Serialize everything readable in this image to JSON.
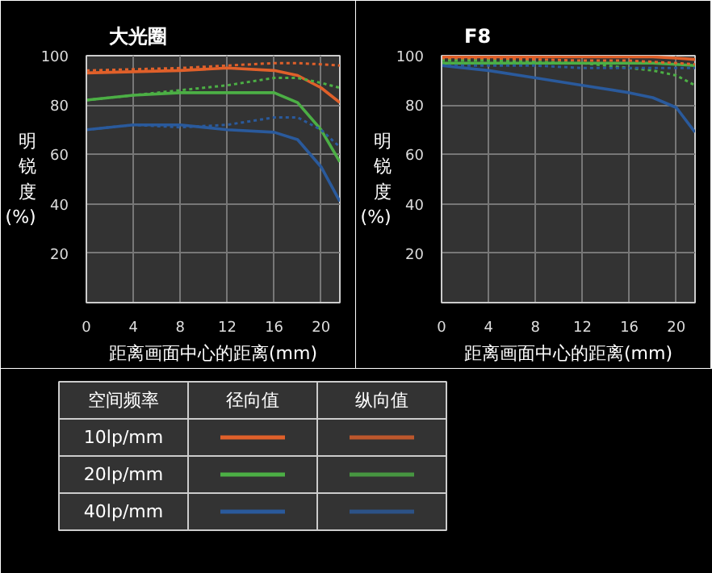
{
  "chart_data": [
    {
      "type": "line",
      "title": "大光圈",
      "xlabel": "距离画面中心的距离(mm)",
      "ylabel": "明锐度(%)",
      "x": [
        0,
        4,
        8,
        12,
        16,
        18,
        20,
        21.6
      ],
      "xlim": [
        0,
        21.6
      ],
      "ylim": [
        0,
        100
      ],
      "xticks": [
        0,
        4,
        8,
        12,
        16,
        20
      ],
      "yticks": [
        20,
        40,
        60,
        80,
        100
      ],
      "grid": true,
      "series": [
        {
          "color": "#e0602a",
          "line_style": "solid",
          "values": [
            93,
            93.5,
            94,
            95,
            94,
            92,
            87,
            81
          ]
        },
        {
          "color": "#e0602a",
          "line_style": "dotted",
          "values": [
            94,
            94.5,
            95,
            96,
            97,
            97,
            96.5,
            96
          ]
        },
        {
          "color": "#4caf45",
          "line_style": "solid",
          "values": [
            82,
            84,
            85,
            85,
            85,
            81,
            70,
            57
          ]
        },
        {
          "color": "#4caf45",
          "line_style": "dotted",
          "values": [
            82,
            84,
            86,
            88,
            91,
            91,
            89,
            87
          ]
        },
        {
          "color": "#2a5a9c",
          "line_style": "solid",
          "values": [
            70,
            72,
            72,
            70,
            69,
            66,
            55,
            41
          ]
        },
        {
          "color": "#2a5a9c",
          "line_style": "dotted",
          "values": [
            70,
            72,
            71,
            72,
            75,
            75,
            70,
            63
          ]
        }
      ],
      "annotations": [
        "空间频率",
        "径向值",
        "纵向值",
        "10lp/mm",
        "20lp/mm",
        "40lp/mm"
      ]
    },
    {
      "type": "line",
      "title": "F8",
      "xlabel": "距离画面中心的距离(mm)",
      "ylabel": "明锐度(%)",
      "x": [
        0,
        4,
        8,
        12,
        16,
        18,
        20,
        21.6
      ],
      "xlim": [
        0,
        21.6
      ],
      "ylim": [
        0,
        100
      ],
      "xticks": [
        0,
        4,
        8,
        12,
        16,
        20
      ],
      "yticks": [
        20,
        40,
        60,
        80,
        100
      ],
      "grid": true,
      "series": [
        {
          "color": "#e0602a",
          "line_style": "solid",
          "values": [
            99.5,
            99.5,
            99.5,
            99.5,
            99.5,
            99.5,
            99,
            98.5
          ]
        },
        {
          "color": "#e0602a",
          "line_style": "dotted",
          "values": [
            98.5,
            98.5,
            98.5,
            98,
            98,
            97.5,
            97,
            96.5
          ]
        },
        {
          "color": "#4caf45",
          "line_style": "solid",
          "values": [
            97,
            97,
            97,
            97,
            97,
            97,
            96.5,
            96
          ]
        },
        {
          "color": "#4caf45",
          "line_style": "dotted",
          "values": [
            98,
            98,
            97.5,
            97,
            95,
            94,
            92,
            88
          ]
        },
        {
          "color": "#2a5a9c",
          "line_style": "solid",
          "values": [
            96,
            94,
            91,
            88,
            85,
            83,
            79,
            69
          ]
        },
        {
          "color": "#2a5a9c",
          "line_style": "dotted",
          "values": [
            96,
            96,
            96,
            95,
            95,
            95,
            95,
            95
          ]
        }
      ]
    }
  ]
}
